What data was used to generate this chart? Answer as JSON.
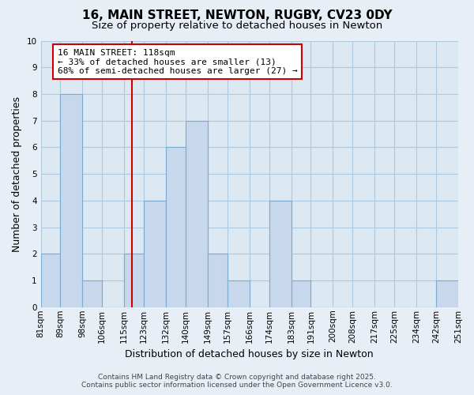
{
  "title": "16, MAIN STREET, NEWTON, RUGBY, CV23 0DY",
  "subtitle": "Size of property relative to detached houses in Newton",
  "bar_color": "#c8d8ec",
  "bar_edge_color": "#7aaacf",
  "bin_labels": [
    "81sqm",
    "89sqm",
    "98sqm",
    "106sqm",
    "115sqm",
    "123sqm",
    "132sqm",
    "140sqm",
    "149sqm",
    "157sqm",
    "166sqm",
    "174sqm",
    "183sqm",
    "191sqm",
    "200sqm",
    "208sqm",
    "217sqm",
    "225sqm",
    "234sqm",
    "242sqm",
    "251sqm"
  ],
  "bin_edges": [
    81,
    89,
    98,
    106,
    115,
    123,
    132,
    140,
    149,
    157,
    166,
    174,
    183,
    191,
    200,
    208,
    217,
    225,
    234,
    242,
    251
  ],
  "counts": [
    2,
    8,
    1,
    0,
    2,
    4,
    6,
    7,
    2,
    1,
    0,
    4,
    1,
    0,
    0,
    0,
    0,
    0,
    0,
    1,
    0
  ],
  "ylim": [
    0,
    10
  ],
  "yticks": [
    0,
    1,
    2,
    3,
    4,
    5,
    6,
    7,
    8,
    9,
    10
  ],
  "ylabel": "Number of detached properties",
  "xlabel": "Distribution of detached houses by size in Newton",
  "annotation_title": "16 MAIN STREET: 118sqm",
  "annotation_line1": "← 33% of detached houses are smaller (13)",
  "annotation_line2": "68% of semi-detached houses are larger (27) →",
  "ref_line_x": 118,
  "footer_line1": "Contains HM Land Registry data © Crown copyright and database right 2025.",
  "footer_line2": "Contains public sector information licensed under the Open Government Licence v3.0.",
  "bg_color": "#e8eef5",
  "plot_bg_color": "#dce8f2",
  "grid_color": "#aec8e0",
  "title_fontsize": 11,
  "subtitle_fontsize": 9.5,
  "axis_label_fontsize": 9,
  "tick_fontsize": 7.5,
  "annotation_fontsize": 8,
  "footer_fontsize": 6.5
}
